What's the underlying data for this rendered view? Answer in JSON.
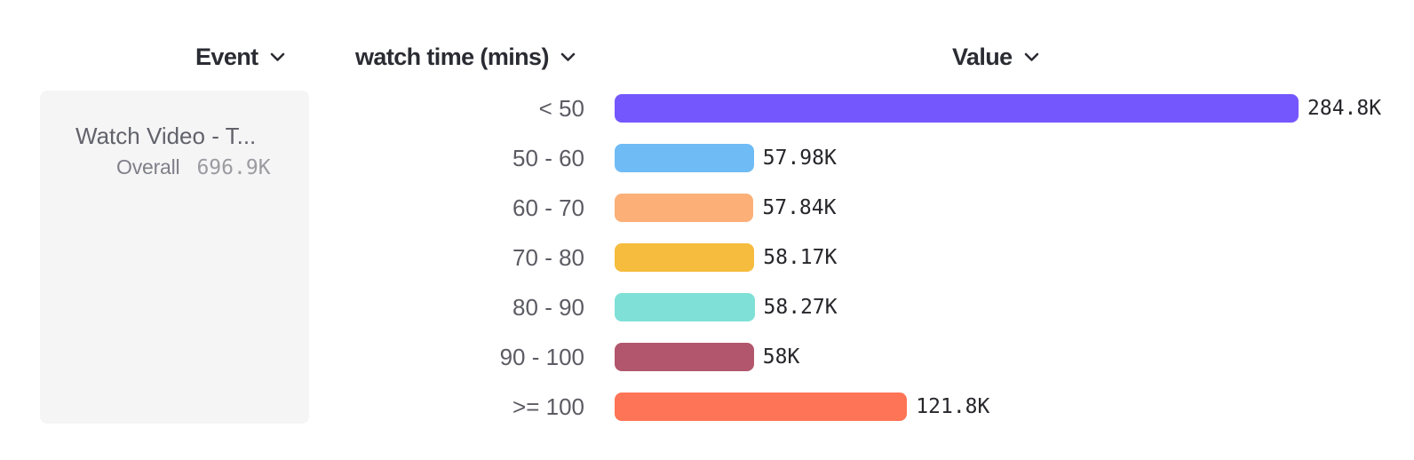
{
  "header": {
    "columns": [
      {
        "id": "event",
        "label": "Event",
        "icon": "chevron-down"
      },
      {
        "id": "breakdown",
        "label": "watch time (mins)",
        "icon": "chevron-down"
      },
      {
        "id": "value",
        "label": "Value",
        "icon": "chevron-down"
      }
    ]
  },
  "event_card": {
    "title": "Watch Video - T...",
    "metric_label": "Overall",
    "metric_value": "696.9K"
  },
  "chart_data": {
    "type": "bar",
    "orientation": "horizontal",
    "title": "",
    "xlabel": "Value",
    "ylabel": "watch time (mins)",
    "categories": [
      "< 50",
      "50 - 60",
      "60 - 70",
      "70 - 80",
      "80 - 90",
      "90 - 100",
      ">= 100"
    ],
    "values": [
      284800,
      57980,
      57840,
      58170,
      58270,
      58000,
      121800
    ],
    "value_labels": [
      "284.8K",
      "57.98K",
      "57.84K",
      "58.17K",
      "58.27K",
      "58K",
      "121.8K"
    ],
    "bar_colors": [
      "#7557fe",
      "#6fbbf5",
      "#fcb078",
      "#f6bc3d",
      "#7fe0d7",
      "#b1566d",
      "#fe7456"
    ],
    "xlim": [
      0,
      284800
    ],
    "grid": false,
    "legend": false
  },
  "colors": {
    "background": "#ffffff",
    "card_background": "#f5f5f6",
    "header_text": "#2b2c33",
    "category_text": "#5b5b63",
    "value_text": "#26262b",
    "event_title_text": "#62626b",
    "metric_label_text": "#7f7f88",
    "metric_value_text": "#9b9ba1"
  }
}
